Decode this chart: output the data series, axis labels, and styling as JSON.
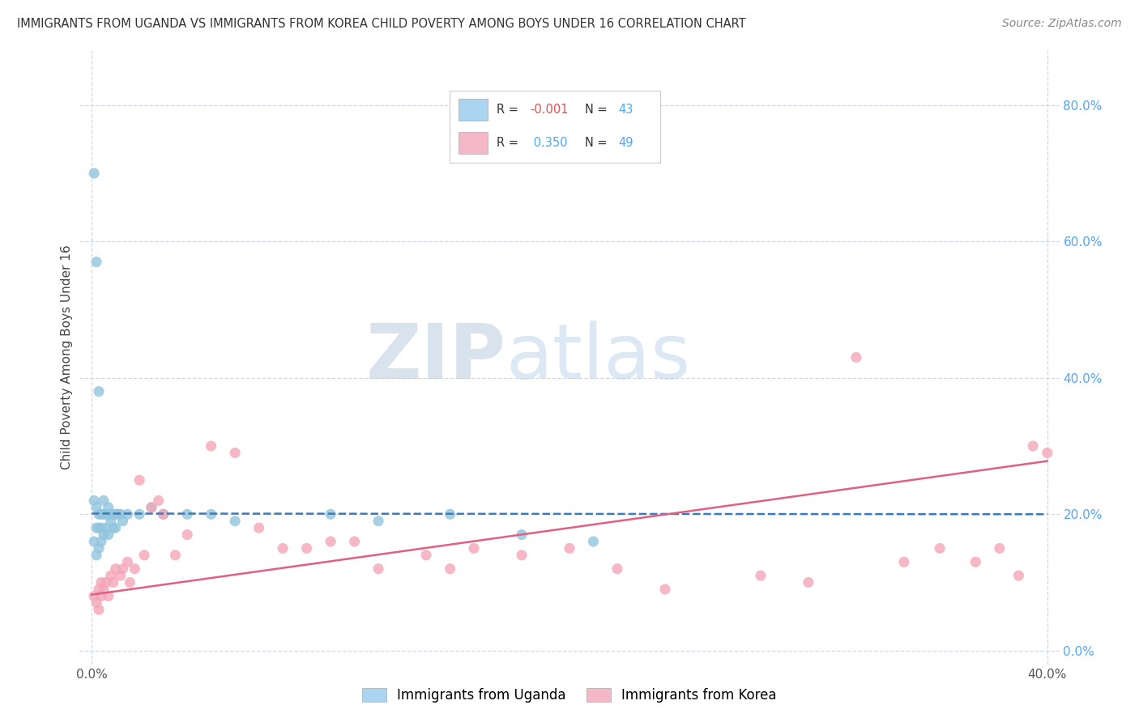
{
  "title": "IMMIGRANTS FROM UGANDA VS IMMIGRANTS FROM KOREA CHILD POVERTY AMONG BOYS UNDER 16 CORRELATION CHART",
  "source": "Source: ZipAtlas.com",
  "ylabel": "Child Poverty Among Boys Under 16",
  "xlabel_uganda": "Immigrants from Uganda",
  "xlabel_korea": "Immigrants from Korea",
  "xlim": [
    -0.005,
    0.405
  ],
  "ylim": [
    -0.02,
    0.88
  ],
  "xticks": [
    0.0,
    0.4
  ],
  "yticks": [
    0.0,
    0.2,
    0.4,
    0.6,
    0.8
  ],
  "legend_r_uganda": "-0.001",
  "legend_n_uganda": "43",
  "legend_r_korea": "0.350",
  "legend_n_korea": "49",
  "color_uganda": "#92c5de",
  "color_korea": "#f4a6b8",
  "line_color_uganda": "#3a7bbf",
  "line_color_korea": "#e06080",
  "watermark_zip": "ZIP",
  "watermark_atlas": "atlas",
  "background_color": "#ffffff",
  "grid_color": "#d0d8e8",
  "uganda_x": [
    0.001,
    0.001,
    0.001,
    0.002,
    0.002,
    0.002,
    0.002,
    0.003,
    0.003,
    0.003,
    0.003,
    0.004,
    0.004,
    0.004,
    0.005,
    0.005,
    0.005,
    0.006,
    0.006,
    0.007,
    0.007,
    0.007,
    0.008,
    0.008,
    0.009,
    0.009,
    0.01,
    0.01,
    0.011,
    0.012,
    0.013,
    0.015,
    0.02,
    0.025,
    0.03,
    0.04,
    0.05,
    0.06,
    0.1,
    0.12,
    0.15,
    0.18,
    0.21
  ],
  "uganda_y": [
    0.7,
    0.22,
    0.16,
    0.57,
    0.21,
    0.18,
    0.14,
    0.38,
    0.2,
    0.18,
    0.15,
    0.2,
    0.18,
    0.16,
    0.22,
    0.2,
    0.17,
    0.2,
    0.18,
    0.21,
    0.2,
    0.17,
    0.2,
    0.19,
    0.2,
    0.18,
    0.2,
    0.18,
    0.2,
    0.2,
    0.19,
    0.2,
    0.2,
    0.21,
    0.2,
    0.2,
    0.2,
    0.19,
    0.2,
    0.19,
    0.2,
    0.17,
    0.16
  ],
  "korea_x": [
    0.001,
    0.002,
    0.003,
    0.003,
    0.004,
    0.004,
    0.005,
    0.006,
    0.007,
    0.008,
    0.009,
    0.01,
    0.012,
    0.013,
    0.015,
    0.016,
    0.018,
    0.02,
    0.022,
    0.025,
    0.028,
    0.03,
    0.035,
    0.04,
    0.05,
    0.06,
    0.07,
    0.08,
    0.09,
    0.1,
    0.11,
    0.12,
    0.14,
    0.15,
    0.16,
    0.18,
    0.2,
    0.22,
    0.24,
    0.28,
    0.3,
    0.32,
    0.34,
    0.355,
    0.37,
    0.38,
    0.388,
    0.394,
    0.4
  ],
  "korea_y": [
    0.08,
    0.07,
    0.06,
    0.09,
    0.08,
    0.1,
    0.09,
    0.1,
    0.08,
    0.11,
    0.1,
    0.12,
    0.11,
    0.12,
    0.13,
    0.1,
    0.12,
    0.25,
    0.14,
    0.21,
    0.22,
    0.2,
    0.14,
    0.17,
    0.3,
    0.29,
    0.18,
    0.15,
    0.15,
    0.16,
    0.16,
    0.12,
    0.14,
    0.12,
    0.15,
    0.14,
    0.15,
    0.12,
    0.09,
    0.11,
    0.1,
    0.43,
    0.13,
    0.15,
    0.13,
    0.15,
    0.11,
    0.3,
    0.29
  ],
  "uganda_line_y0": 0.201,
  "uganda_line_y1": 0.2,
  "korea_line_y0": 0.082,
  "korea_line_y1": 0.278
}
